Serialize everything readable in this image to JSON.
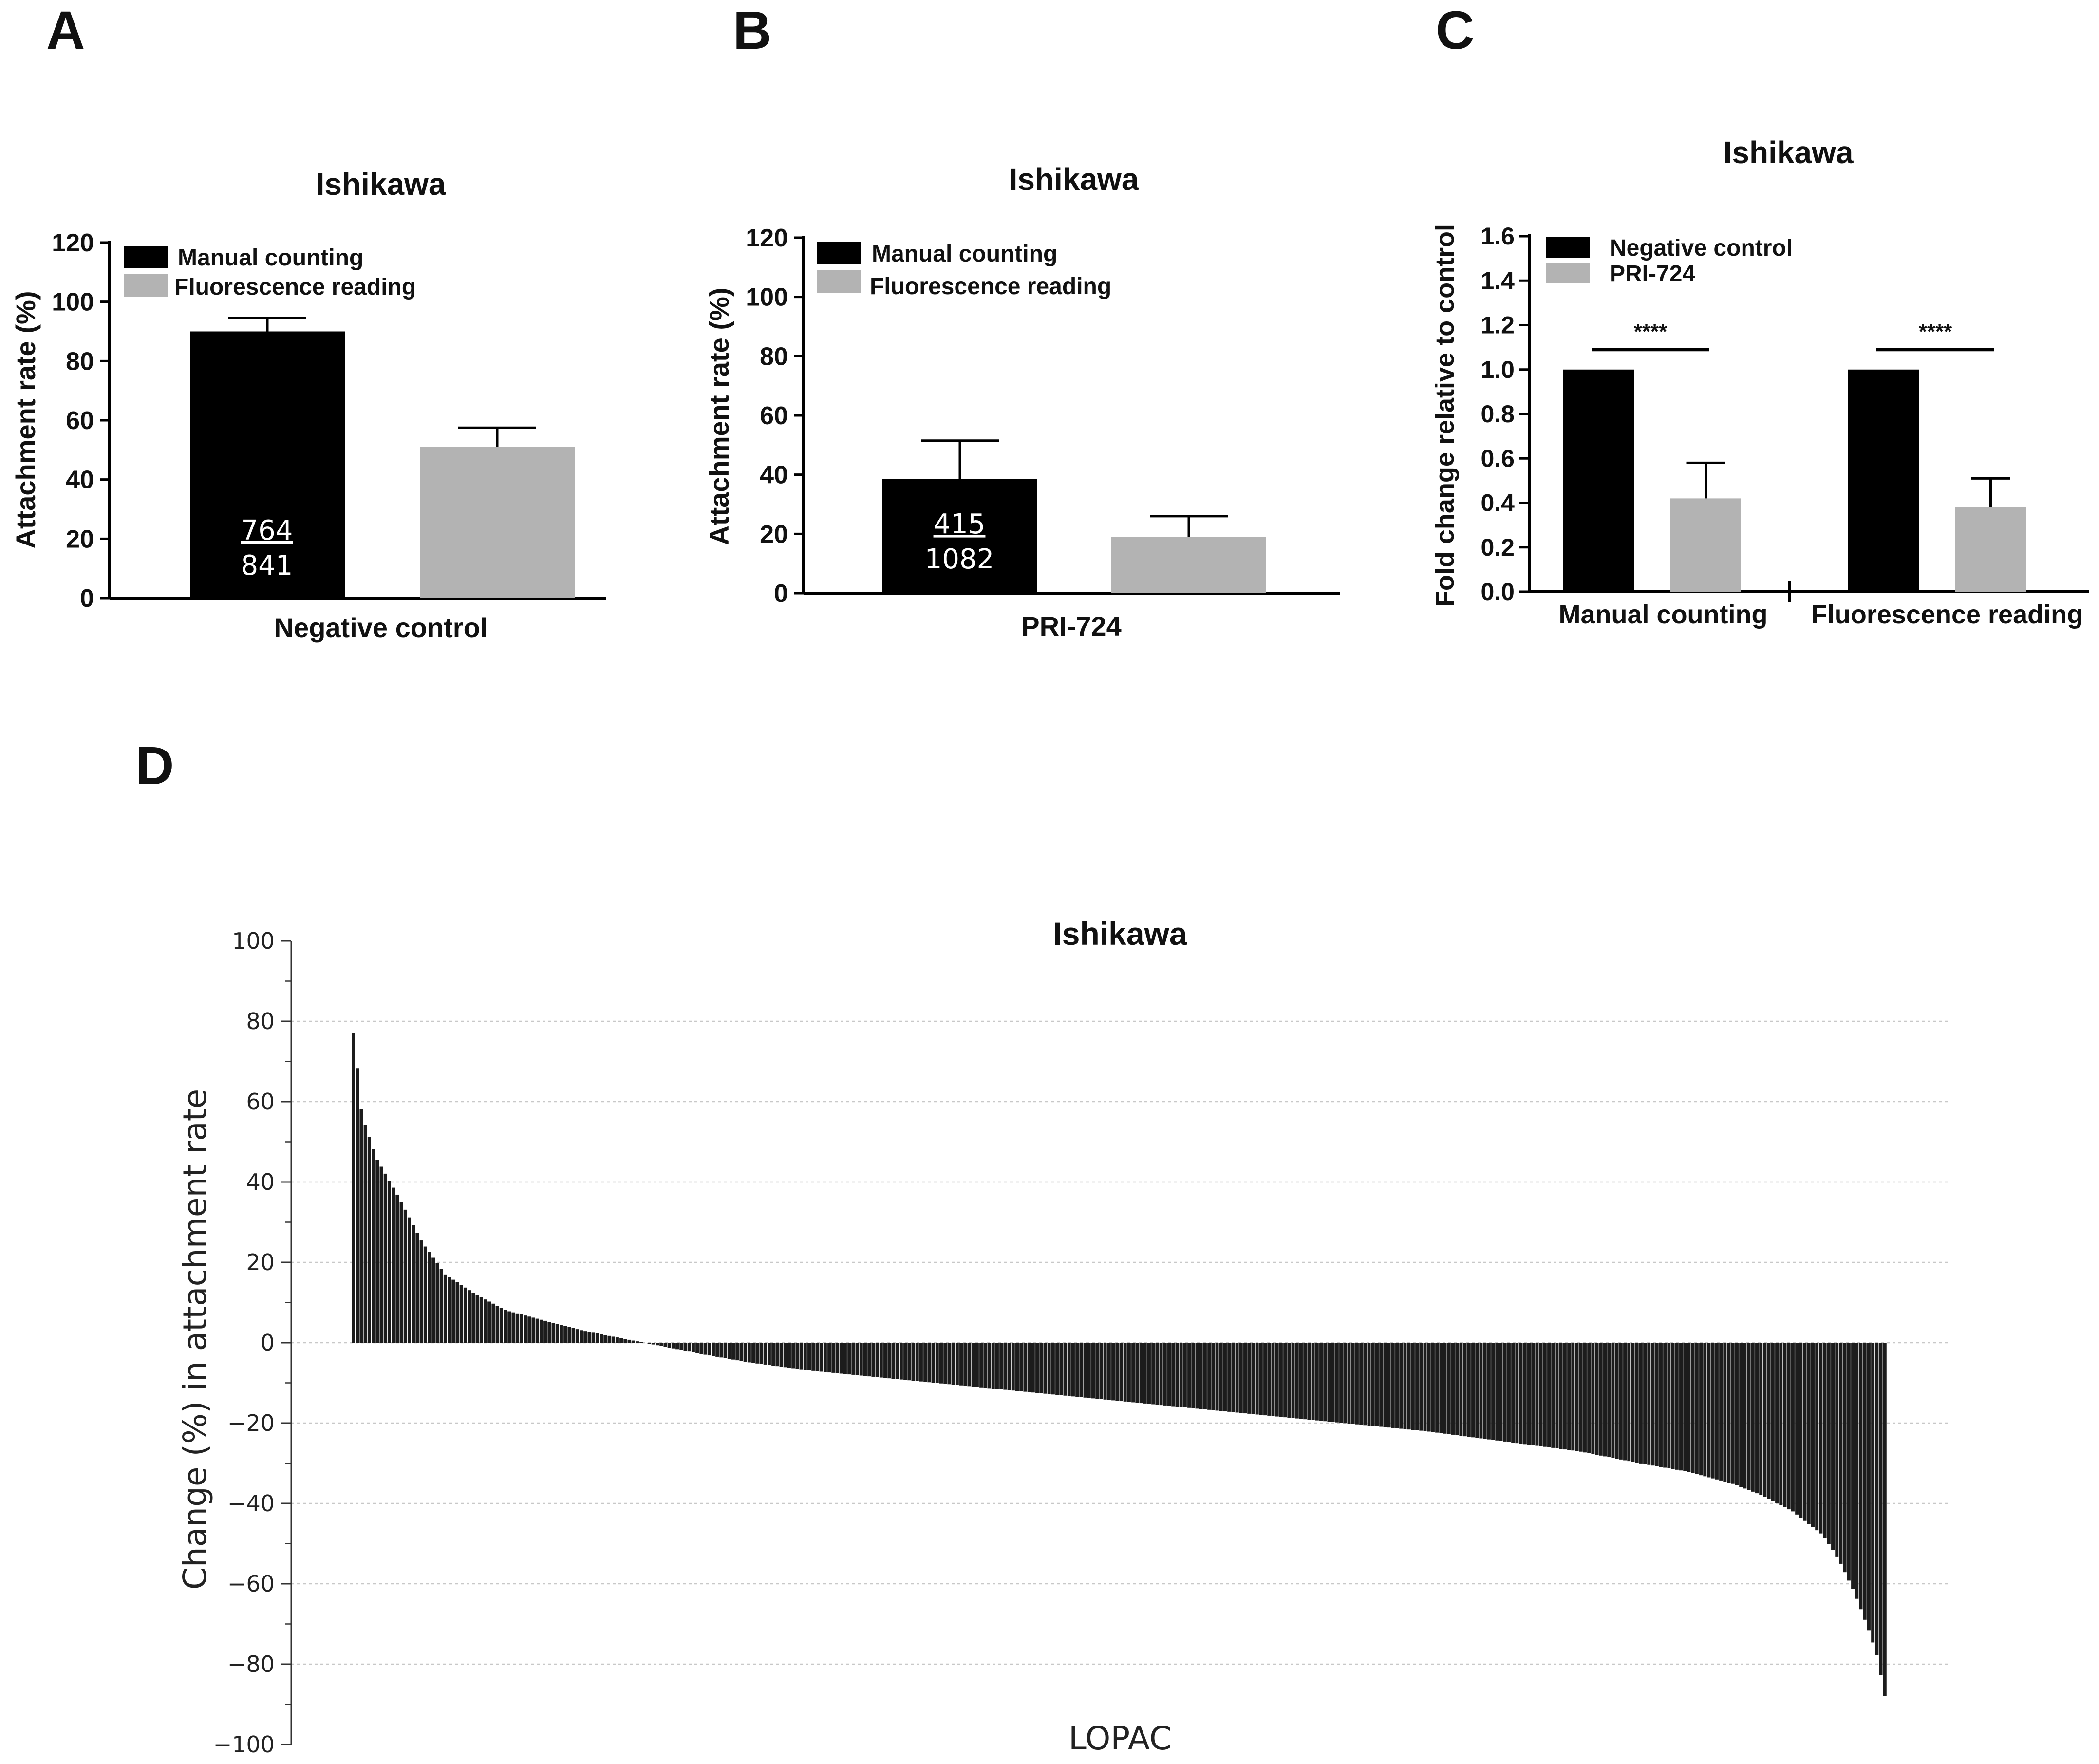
{
  "panels": {
    "a_letter": "A",
    "b_letter": "B",
    "c_letter": "C",
    "d_letter": "D"
  },
  "chart_data": [
    {
      "id": "A",
      "type": "bar",
      "title": "Ishikawa",
      "xlabel": "Negative control",
      "ylabel": "Attachment rate (%)",
      "ylim": [
        0,
        120
      ],
      "yticks": [
        "0",
        "20",
        "40",
        "60",
        "80",
        "100",
        "120"
      ],
      "legend": [
        "Manual counting",
        "Fluorescence reading"
      ],
      "legend_position": "top-left",
      "colors": [
        "#000000",
        "#b3b3b3"
      ],
      "values": [
        90,
        51
      ],
      "errors": [
        4.5,
        6.5
      ],
      "bar_label_top": "764",
      "bar_label_bottom": "841"
    },
    {
      "id": "B",
      "type": "bar",
      "title": "Ishikawa",
      "xlabel": "PRI-724",
      "ylabel": "Attachment rate (%)",
      "ylim": [
        0,
        120
      ],
      "yticks": [
        "0",
        "20",
        "40",
        "60",
        "80",
        "100",
        "120"
      ],
      "legend": [
        "Manual counting",
        "Fluorescence reading"
      ],
      "legend_position": "top-left",
      "colors": [
        "#000000",
        "#b3b3b3"
      ],
      "values": [
        38.5,
        19
      ],
      "errors": [
        13,
        7
      ],
      "bar_label_top": "415",
      "bar_label_bottom": "1082"
    },
    {
      "id": "C",
      "type": "bar",
      "title": "Ishikawa",
      "ylabel": "Fold change relative to control",
      "ylim": [
        0,
        1.6
      ],
      "yticks": [
        "0.0",
        "0.2",
        "0.4",
        "0.6",
        "0.8",
        "1.0",
        "1.2",
        "1.4",
        "1.6"
      ],
      "categories": [
        "Manual counting",
        "Fluorescence reading"
      ],
      "legend_position": "top-left",
      "colors": [
        "#000000",
        "#b3b3b3"
      ],
      "series": [
        {
          "name": "Negative control",
          "values": [
            1.0,
            1.0
          ],
          "errors": [
            0,
            0
          ]
        },
        {
          "name": "PRI-724",
          "values": [
            0.42,
            0.38
          ],
          "errors": [
            0.16,
            0.13
          ]
        }
      ],
      "significance": [
        "****",
        "****"
      ],
      "significance_level": 1.09
    },
    {
      "id": "D",
      "type": "bar",
      "title": "Ishikawa",
      "xlabel": "LOPAC",
      "ylabel": "Change (%) in attachment rate",
      "ylim": [
        -100,
        100
      ],
      "yticks": [
        "100",
        "80",
        "60",
        "40",
        "20",
        "0",
        "−20",
        "−40",
        "−60",
        "−80",
        "−100"
      ],
      "ytick_values": [
        100,
        80,
        60,
        40,
        20,
        0,
        -20,
        -40,
        -60,
        -80,
        -100
      ],
      "grid": true,
      "bar_color": "#1c1c1c",
      "n_compounds": 384,
      "sorted_values": {
        "rank_fraction": [
          0,
          0.002,
          0.004,
          0.008,
          0.015,
          0.03,
          0.045,
          0.06,
          0.08,
          0.1,
          0.12,
          0.15,
          0.19,
          0.23,
          0.26,
          0.3,
          0.38,
          0.46,
          0.54,
          0.62,
          0.7,
          0.76,
          0.8,
          0.84,
          0.87,
          0.9,
          0.92,
          0.94,
          0.96,
          0.97,
          0.98,
          0.99,
          0.995,
          1.0
        ],
        "value": [
          77,
          72,
          60,
          54,
          46,
          36,
          25,
          17,
          12,
          8,
          6,
          3,
          0,
          -3,
          -5,
          -7,
          -10,
          -13,
          -16,
          -19,
          -22,
          -25,
          -27,
          -30,
          -32,
          -35,
          -38,
          -42,
          -48,
          -54,
          -62,
          -72,
          -78,
          -88
        ]
      }
    }
  ]
}
